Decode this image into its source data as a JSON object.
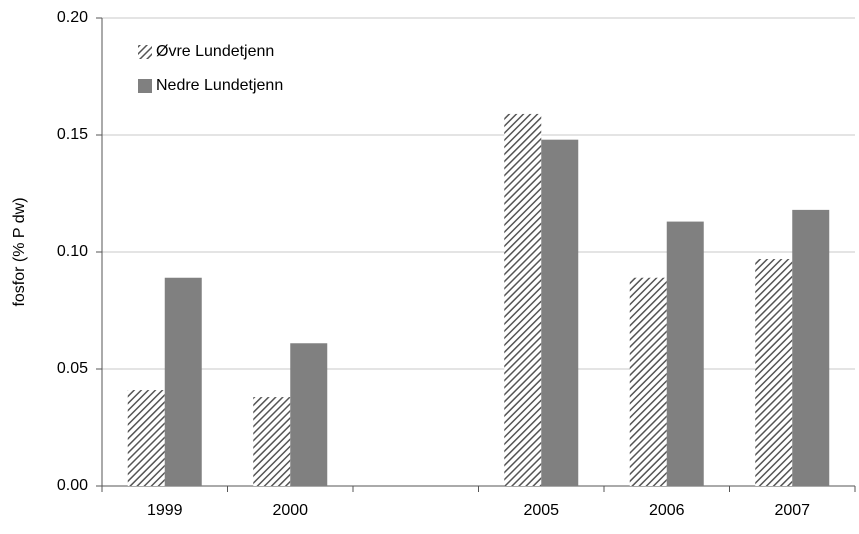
{
  "chart_data": {
    "type": "bar",
    "y_label": "fosfor (% P dw)",
    "categories": [
      "1999",
      "2000",
      null,
      "2005",
      "2006",
      "2007"
    ],
    "series": [
      {
        "name": "Øvre Lundetjenn",
        "color": "#7f7f7f",
        "pattern": "hatch",
        "values": [
          0.041,
          0.038,
          null,
          0.159,
          0.089,
          0.097
        ]
      },
      {
        "name": "Nedre Lundetjenn",
        "color": "#808080",
        "pattern": "solid",
        "values": [
          0.089,
          0.061,
          null,
          0.148,
          0.113,
          0.118
        ]
      }
    ],
    "ylim": [
      0,
      0.2
    ],
    "yticks": [
      {
        "value": 0,
        "label": "0.00"
      },
      {
        "value": 0.05,
        "label": "0.05"
      },
      {
        "value": 0.1,
        "label": "0.10"
      },
      {
        "value": 0.15,
        "label": "0.15"
      },
      {
        "value": 0.2,
        "label": "0.20"
      }
    ],
    "grid": true,
    "legend": "upper left"
  }
}
